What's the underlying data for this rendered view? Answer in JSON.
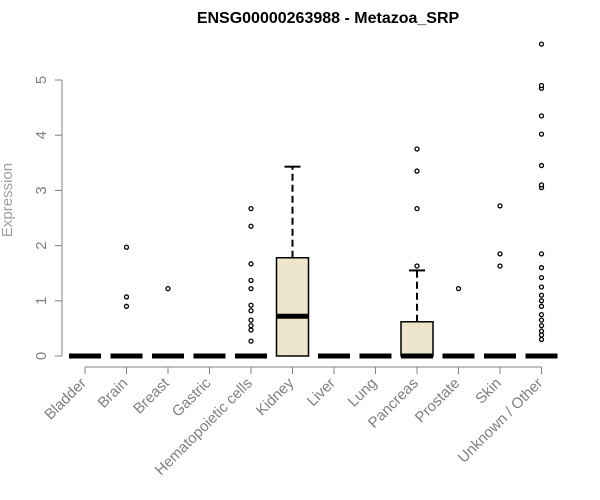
{
  "chart_data": {
    "type": "box",
    "title": "ENSG00000263988 - Metazoa_SRP",
    "xlabel": "",
    "ylabel": "Expression",
    "ylim": [
      0,
      5.8
    ],
    "yticks": [
      0,
      1,
      2,
      3,
      4,
      5
    ],
    "grid": false,
    "colors": {
      "box_fill": "#ede6cc",
      "stroke": "#000000",
      "axis": "#808080"
    },
    "categories": [
      "Bladder",
      "Brain",
      "Breast",
      "Gastric",
      "Hematopoietic cells",
      "Kidney",
      "Liver",
      "Lung",
      "Pancreas",
      "Prostate",
      "Skin",
      "Unknown / Other"
    ],
    "boxes": [
      {
        "category": "Bladder",
        "q1": 0,
        "median": 0,
        "q3": 0,
        "whisker_low": 0,
        "whisker_high": 0,
        "outliers": []
      },
      {
        "category": "Brain",
        "q1": 0,
        "median": 0,
        "q3": 0,
        "whisker_low": 0,
        "whisker_high": 0,
        "outliers": [
          0.9,
          1.07,
          1.97
        ]
      },
      {
        "category": "Breast",
        "q1": 0,
        "median": 0,
        "q3": 0,
        "whisker_low": 0,
        "whisker_high": 0,
        "outliers": [
          1.22
        ]
      },
      {
        "category": "Gastric",
        "q1": 0,
        "median": 0,
        "q3": 0,
        "whisker_low": 0,
        "whisker_high": 0,
        "outliers": []
      },
      {
        "category": "Hematopoietic cells",
        "q1": 0,
        "median": 0,
        "q3": 0,
        "whisker_low": 0,
        "whisker_high": 0,
        "outliers": [
          0.27,
          0.47,
          0.55,
          0.65,
          0.82,
          0.92,
          1.22,
          1.37,
          1.67,
          2.35,
          2.67
        ]
      },
      {
        "category": "Kidney",
        "q1": 0,
        "median": 0.72,
        "q3": 1.78,
        "whisker_low": 0,
        "whisker_high": 3.43,
        "outliers": []
      },
      {
        "category": "Liver",
        "q1": 0,
        "median": 0,
        "q3": 0,
        "whisker_low": 0,
        "whisker_high": 0,
        "outliers": []
      },
      {
        "category": "Lung",
        "q1": 0,
        "median": 0,
        "q3": 0,
        "whisker_low": 0,
        "whisker_high": 0,
        "outliers": []
      },
      {
        "category": "Pancreas",
        "q1": 0,
        "median": 0,
        "q3": 0.62,
        "whisker_low": 0,
        "whisker_high": 1.55,
        "outliers": [
          1.63,
          2.67,
          3.35,
          3.75
        ]
      },
      {
        "category": "Prostate",
        "q1": 0,
        "median": 0,
        "q3": 0,
        "whisker_low": 0,
        "whisker_high": 0,
        "outliers": [
          1.22
        ]
      },
      {
        "category": "Skin",
        "q1": 0,
        "median": 0,
        "q3": 0,
        "whisker_low": 0,
        "whisker_high": 0,
        "outliers": [
          1.63,
          1.85,
          2.72
        ]
      },
      {
        "category": "Unknown / Other",
        "q1": 0,
        "median": 0,
        "q3": 0,
        "whisker_low": 0,
        "whisker_high": 0,
        "outliers": [
          0.3,
          0.38,
          0.45,
          0.55,
          0.65,
          0.75,
          0.9,
          1.0,
          1.1,
          1.25,
          1.42,
          1.6,
          1.85,
          3.05,
          3.1,
          3.45,
          4.02,
          4.35,
          4.85,
          4.9,
          5.65
        ]
      }
    ]
  }
}
